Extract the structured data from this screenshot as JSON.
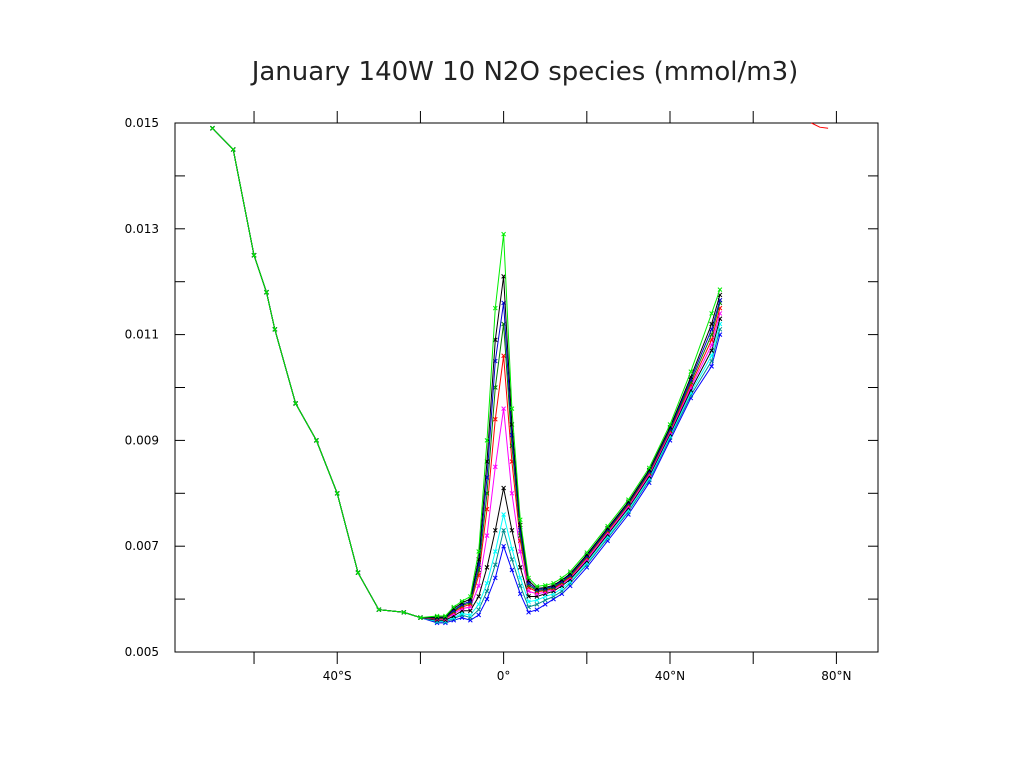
{
  "chart_data": {
    "type": "line",
    "title": "January 140W 10 N2O species (mmol/m3)",
    "xlabel": "",
    "ylabel": "",
    "xlim": [
      -79,
      90
    ],
    "ylim": [
      0.005,
      0.015
    ],
    "y_ticks": [
      0.005,
      0.007,
      0.009,
      0.011,
      0.013,
      0.015
    ],
    "y_tick_labels": [
      "0.005",
      "0.007",
      "0.009",
      "0.011",
      "0.013",
      "0.015"
    ],
    "x_minor_ticks": [
      -60,
      -40,
      -20,
      0,
      20,
      40,
      60,
      80
    ],
    "x_ticks": [
      -40,
      0,
      40,
      80
    ],
    "x_tick_labels": [
      "40°S",
      "0°",
      "40°N",
      "80°N"
    ],
    "grid": false,
    "legend": "none",
    "series": [
      {
        "color": "#0000ff",
        "x": [
          -70,
          -65,
          -60,
          -57,
          -55,
          -50,
          -45,
          -40,
          -35,
          -30,
          -24,
          -20,
          -16,
          -14,
          -12,
          -10,
          -8,
          -6,
          -4,
          -2,
          0,
          2,
          4,
          6,
          8,
          10,
          12,
          14,
          16,
          20,
          25,
          30,
          35,
          40,
          45,
          50,
          52
        ],
        "y": [
          0.0149,
          0.0145,
          0.0125,
          0.0118,
          0.0111,
          0.0097,
          0.009,
          0.008,
          0.0065,
          0.0058,
          0.00575,
          0.00565,
          0.00555,
          0.00555,
          0.0056,
          0.00565,
          0.0056,
          0.0057,
          0.006,
          0.0064,
          0.007,
          0.00655,
          0.0061,
          0.00575,
          0.0058,
          0.0059,
          0.006,
          0.0061,
          0.00625,
          0.0066,
          0.0071,
          0.0076,
          0.0082,
          0.009,
          0.0098,
          0.0104,
          0.011
        ]
      },
      {
        "color": "#008b8b",
        "x": [
          -70,
          -65,
          -60,
          -57,
          -55,
          -50,
          -45,
          -40,
          -35,
          -30,
          -24,
          -20,
          -16,
          -14,
          -12,
          -10,
          -8,
          -6,
          -4,
          -2,
          0,
          2,
          4,
          6,
          8,
          10,
          12,
          14,
          16,
          20,
          25,
          30,
          35,
          40,
          45,
          50,
          52
        ],
        "y": [
          0.0149,
          0.0145,
          0.0125,
          0.0118,
          0.0111,
          0.0097,
          0.009,
          0.008,
          0.0065,
          0.0058,
          0.00575,
          0.00565,
          0.00557,
          0.00557,
          0.00563,
          0.0057,
          0.00565,
          0.0058,
          0.00615,
          0.00665,
          0.0073,
          0.00675,
          0.00625,
          0.00585,
          0.0059,
          0.00598,
          0.00605,
          0.00615,
          0.0063,
          0.00665,
          0.00715,
          0.00765,
          0.00825,
          0.00905,
          0.00985,
          0.0105,
          0.0111
        ]
      },
      {
        "color": "#00ffff",
        "x": [
          -70,
          -65,
          -60,
          -57,
          -55,
          -50,
          -45,
          -40,
          -35,
          -30,
          -24,
          -20,
          -16,
          -14,
          -12,
          -10,
          -8,
          -6,
          -4,
          -2,
          0,
          2,
          4,
          6,
          8,
          10,
          12,
          14,
          16,
          20,
          25,
          30,
          35,
          40,
          45,
          50,
          52
        ],
        "y": [
          0.0149,
          0.0145,
          0.0125,
          0.0118,
          0.0111,
          0.0097,
          0.009,
          0.008,
          0.0065,
          0.0058,
          0.00575,
          0.00565,
          0.00558,
          0.00558,
          0.00565,
          0.00573,
          0.0057,
          0.0059,
          0.0063,
          0.0069,
          0.0076,
          0.00695,
          0.0064,
          0.00595,
          0.00598,
          0.00605,
          0.0061,
          0.0062,
          0.00633,
          0.00668,
          0.00718,
          0.00768,
          0.00828,
          0.00908,
          0.0099,
          0.0106,
          0.0112
        ]
      },
      {
        "color": "#000000",
        "x": [
          -70,
          -65,
          -60,
          -57,
          -55,
          -50,
          -45,
          -40,
          -35,
          -30,
          -24,
          -20,
          -16,
          -14,
          -12,
          -10,
          -8,
          -6,
          -4,
          -2,
          0,
          2,
          4,
          6,
          8,
          10,
          12,
          14,
          16,
          20,
          25,
          30,
          35,
          40,
          45,
          50,
          52
        ],
        "y": [
          0.0149,
          0.0145,
          0.0125,
          0.0118,
          0.0111,
          0.0097,
          0.009,
          0.008,
          0.0065,
          0.0058,
          0.00575,
          0.00565,
          0.0056,
          0.0056,
          0.00568,
          0.00578,
          0.00578,
          0.00605,
          0.0066,
          0.0073,
          0.0081,
          0.0073,
          0.0066,
          0.00605,
          0.00605,
          0.0061,
          0.00615,
          0.00625,
          0.00637,
          0.00672,
          0.00722,
          0.00772,
          0.00832,
          0.00912,
          0.00995,
          0.0107,
          0.0113
        ]
      },
      {
        "color": "#ff00ff",
        "x": [
          -70,
          -65,
          -60,
          -57,
          -55,
          -50,
          -45,
          -40,
          -35,
          -30,
          -24,
          -20,
          -16,
          -14,
          -12,
          -10,
          -8,
          -6,
          -4,
          -2,
          0,
          2,
          4,
          6,
          8,
          10,
          12,
          14,
          16,
          20,
          25,
          30,
          35,
          40,
          45,
          50,
          52
        ],
        "y": [
          0.0149,
          0.0145,
          0.0125,
          0.0118,
          0.0111,
          0.0097,
          0.009,
          0.008,
          0.0065,
          0.0058,
          0.00575,
          0.00565,
          0.00562,
          0.00562,
          0.00572,
          0.00582,
          0.00585,
          0.00625,
          0.0072,
          0.0085,
          0.0096,
          0.008,
          0.0069,
          0.00615,
          0.0061,
          0.00613,
          0.00618,
          0.00628,
          0.0064,
          0.00675,
          0.00725,
          0.00775,
          0.00835,
          0.00915,
          0.01,
          0.0108,
          0.0114
        ]
      },
      {
        "color": "#ff0000",
        "x": [
          -70,
          -65,
          -60,
          -57,
          -55,
          -50,
          -45,
          -40,
          -35,
          -30,
          -24,
          -20,
          -16,
          -14,
          -12,
          -10,
          -8,
          -6,
          -4,
          -2,
          0,
          2,
          4,
          6,
          8,
          10,
          12,
          14,
          16,
          20,
          25,
          30,
          35,
          40,
          45,
          50,
          52
        ],
        "y": [
          0.0149,
          0.0145,
          0.0125,
          0.0118,
          0.0111,
          0.0097,
          0.009,
          0.008,
          0.0065,
          0.0058,
          0.00575,
          0.00565,
          0.00563,
          0.00563,
          0.00575,
          0.00585,
          0.0059,
          0.00645,
          0.0077,
          0.0094,
          0.0106,
          0.0086,
          0.0071,
          0.00622,
          0.00614,
          0.00616,
          0.0062,
          0.0063,
          0.00642,
          0.00678,
          0.00728,
          0.00778,
          0.00838,
          0.00918,
          0.01005,
          0.0109,
          0.0115
        ]
      },
      {
        "color": "#008000",
        "x": [
          -70,
          -65,
          -60,
          -57,
          -55,
          -50,
          -45,
          -40,
          -35,
          -30,
          -24,
          -20,
          -16,
          -14,
          -12,
          -10,
          -8,
          -6,
          -4,
          -2,
          0,
          2,
          4,
          6,
          8,
          10,
          12,
          14,
          16,
          20,
          25,
          30,
          35,
          40,
          45,
          50,
          52
        ],
        "y": [
          0.0149,
          0.0145,
          0.0125,
          0.0118,
          0.0111,
          0.0097,
          0.009,
          0.008,
          0.0065,
          0.0058,
          0.00575,
          0.00565,
          0.00564,
          0.00564,
          0.00577,
          0.00588,
          0.00593,
          0.00655,
          0.008,
          0.01,
          0.0112,
          0.0089,
          0.0072,
          0.00626,
          0.00616,
          0.00618,
          0.00622,
          0.00632,
          0.00644,
          0.0068,
          0.0073,
          0.0078,
          0.0084,
          0.0092,
          0.0101,
          0.011,
          0.0116
        ]
      },
      {
        "color": "#0000cd",
        "x": [
          -70,
          -65,
          -60,
          -57,
          -55,
          -50,
          -45,
          -40,
          -35,
          -30,
          -24,
          -20,
          -16,
          -14,
          -12,
          -10,
          -8,
          -6,
          -4,
          -2,
          0,
          2,
          4,
          6,
          8,
          10,
          12,
          14,
          16,
          20,
          25,
          30,
          35,
          40,
          45,
          50,
          52
        ],
        "y": [
          0.0149,
          0.0145,
          0.0125,
          0.0118,
          0.0111,
          0.0097,
          0.009,
          0.008,
          0.0065,
          0.0058,
          0.00575,
          0.00565,
          0.00565,
          0.00565,
          0.00579,
          0.0059,
          0.00596,
          0.00665,
          0.0083,
          0.0105,
          0.0116,
          0.0091,
          0.0073,
          0.0063,
          0.00618,
          0.0062,
          0.00624,
          0.00634,
          0.00646,
          0.00682,
          0.00732,
          0.00782,
          0.00842,
          0.00922,
          0.01015,
          0.0111,
          0.01165
        ]
      },
      {
        "color": "#000000",
        "x": [
          -70,
          -65,
          -60,
          -57,
          -55,
          -50,
          -45,
          -40,
          -35,
          -30,
          -24,
          -20,
          -16,
          -14,
          -12,
          -10,
          -8,
          -6,
          -4,
          -2,
          0,
          2,
          4,
          6,
          8,
          10,
          12,
          14,
          16,
          20,
          25,
          30,
          35,
          40,
          45,
          50,
          52
        ],
        "y": [
          0.0149,
          0.0145,
          0.0125,
          0.0118,
          0.0111,
          0.0097,
          0.009,
          0.008,
          0.0065,
          0.0058,
          0.00575,
          0.00565,
          0.00566,
          0.00566,
          0.00582,
          0.00593,
          0.006,
          0.00675,
          0.0086,
          0.0109,
          0.0121,
          0.0093,
          0.0074,
          0.00635,
          0.0062,
          0.00622,
          0.00626,
          0.00636,
          0.00648,
          0.00684,
          0.00734,
          0.00784,
          0.00844,
          0.00925,
          0.0102,
          0.0112,
          0.01175
        ]
      },
      {
        "color": "#00ee00",
        "x": [
          -70,
          -65,
          -60,
          -57,
          -55,
          -50,
          -45,
          -40,
          -35,
          -30,
          -24,
          -20,
          -16,
          -14,
          -12,
          -10,
          -8,
          -6,
          -4,
          -2,
          0,
          2,
          4,
          6,
          8,
          10,
          12,
          14,
          16,
          20,
          25,
          30,
          35,
          40,
          45,
          50,
          52
        ],
        "y": [
          0.0149,
          0.0145,
          0.0125,
          0.0118,
          0.0111,
          0.0097,
          0.009,
          0.008,
          0.0065,
          0.0058,
          0.00575,
          0.00565,
          0.00568,
          0.00568,
          0.00585,
          0.00596,
          0.00605,
          0.0069,
          0.009,
          0.0115,
          0.0129,
          0.0096,
          0.0075,
          0.0064,
          0.00624,
          0.00626,
          0.0063,
          0.0064,
          0.00652,
          0.00688,
          0.00738,
          0.00788,
          0.00848,
          0.0093,
          0.0103,
          0.0114,
          0.01185
        ]
      },
      {
        "color": "#ff0000",
        "x": [
          74,
          76,
          78
        ],
        "y": [
          0.015,
          0.01492,
          0.0149
        ]
      }
    ]
  }
}
